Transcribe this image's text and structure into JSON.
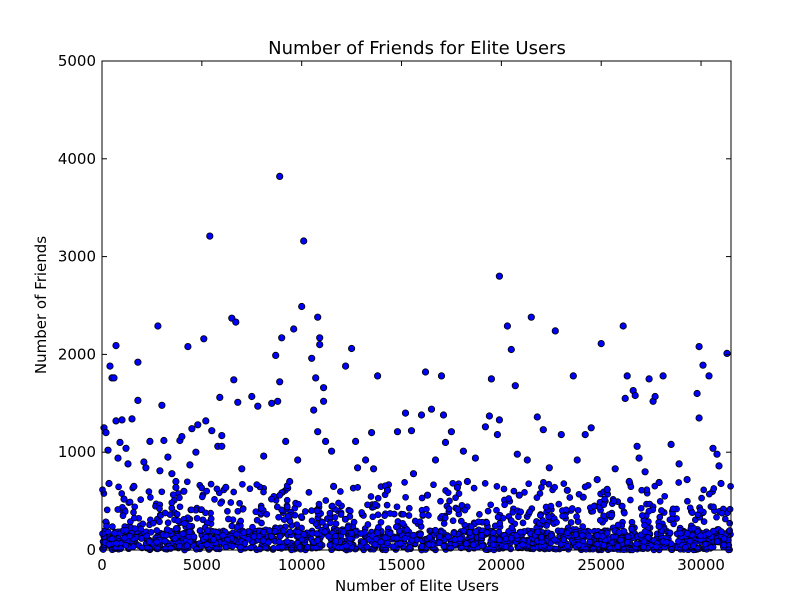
{
  "chart_data": {
    "type": "scatter",
    "title": "Number of Friends for Elite Users",
    "xlabel": "Number of Elite Users",
    "ylabel": "Number of Friends",
    "xlim": [
      0,
      31500
    ],
    "ylim": [
      0,
      5000
    ],
    "xticks": [
      "0",
      "5000",
      "10000",
      "15000",
      "20000",
      "25000",
      "30000"
    ],
    "yticks": [
      "0",
      "1000",
      "2000",
      "3000",
      "4000",
      "5000"
    ],
    "grid": false,
    "legend": "none",
    "marker_color": "#0000ff",
    "marker_edge": "#000000",
    "points": [
      [
        100,
        1250
      ],
      [
        200,
        1200
      ],
      [
        300,
        1020
      ],
      [
        350,
        680
      ],
      [
        400,
        1880
      ],
      [
        500,
        1760
      ],
      [
        600,
        1760
      ],
      [
        700,
        2090
      ],
      [
        700,
        1320
      ],
      [
        800,
        940
      ],
      [
        900,
        1100
      ],
      [
        1000,
        1330
      ],
      [
        1100,
        520
      ],
      [
        1200,
        1040
      ],
      [
        1300,
        880
      ],
      [
        1500,
        1340
      ],
      [
        1800,
        1920
      ],
      [
        1800,
        1530
      ],
      [
        2200,
        840
      ],
      [
        2400,
        1110
      ],
      [
        2800,
        2290
      ],
      [
        2900,
        810
      ],
      [
        3000,
        1480
      ],
      [
        3100,
        1120
      ],
      [
        3300,
        950
      ],
      [
        3500,
        780
      ],
      [
        3700,
        640
      ],
      [
        3900,
        1120
      ],
      [
        4000,
        1160
      ],
      [
        4300,
        2080
      ],
      [
        4400,
        870
      ],
      [
        4500,
        1240
      ],
      [
        4700,
        1000
      ],
      [
        4800,
        1280
      ],
      [
        5100,
        2160
      ],
      [
        5200,
        1320
      ],
      [
        5400,
        3210
      ],
      [
        5500,
        1220
      ],
      [
        5800,
        1060
      ],
      [
        5900,
        1560
      ],
      [
        6000,
        1170
      ],
      [
        6500,
        2370
      ],
      [
        6600,
        1740
      ],
      [
        6700,
        2330
      ],
      [
        6800,
        1510
      ],
      [
        7500,
        1570
      ],
      [
        7800,
        1470
      ],
      [
        8100,
        960
      ],
      [
        8500,
        1500
      ],
      [
        8700,
        1990
      ],
      [
        8800,
        1520
      ],
      [
        8900,
        3820
      ],
      [
        8900,
        1720
      ],
      [
        9000,
        2170
      ],
      [
        9200,
        1110
      ],
      [
        9600,
        2260
      ],
      [
        10000,
        2490
      ],
      [
        10100,
        3160
      ],
      [
        10500,
        1960
      ],
      [
        10600,
        1430
      ],
      [
        10800,
        2380
      ],
      [
        10900,
        2170
      ],
      [
        10900,
        2100
      ],
      [
        11100,
        1660
      ],
      [
        11100,
        1520
      ],
      [
        10700,
        1760
      ],
      [
        10800,
        1210
      ],
      [
        11200,
        1110
      ],
      [
        11500,
        1010
      ],
      [
        12200,
        1880
      ],
      [
        12500,
        2060
      ],
      [
        12700,
        1110
      ],
      [
        13500,
        1200
      ],
      [
        13800,
        1780
      ],
      [
        14800,
        1210
      ],
      [
        15200,
        1400
      ],
      [
        15500,
        1220
      ],
      [
        16000,
        1380
      ],
      [
        16200,
        1820
      ],
      [
        16500,
        1440
      ],
      [
        16700,
        920
      ],
      [
        17000,
        1780
      ],
      [
        17100,
        1380
      ],
      [
        17200,
        1100
      ],
      [
        17500,
        1210
      ],
      [
        18100,
        1010
      ],
      [
        19200,
        1260
      ],
      [
        19400,
        1370
      ],
      [
        19500,
        1750
      ],
      [
        19800,
        1180
      ],
      [
        19900,
        2800
      ],
      [
        19900,
        1330
      ],
      [
        20300,
        2290
      ],
      [
        20500,
        2050
      ],
      [
        20700,
        1680
      ],
      [
        20800,
        980
      ],
      [
        21500,
        2380
      ],
      [
        21800,
        1360
      ],
      [
        22100,
        1230
      ],
      [
        22700,
        2240
      ],
      [
        23000,
        1180
      ],
      [
        23600,
        1780
      ],
      [
        23800,
        920
      ],
      [
        24200,
        1180
      ],
      [
        24500,
        1250
      ],
      [
        25000,
        2110
      ],
      [
        25700,
        830
      ],
      [
        26100,
        2290
      ],
      [
        26300,
        1780
      ],
      [
        26200,
        1550
      ],
      [
        26600,
        1630
      ],
      [
        26700,
        1580
      ],
      [
        26800,
        1060
      ],
      [
        26900,
        940
      ],
      [
        27200,
        800
      ],
      [
        27400,
        1750
      ],
      [
        27600,
        1520
      ],
      [
        27700,
        1570
      ],
      [
        28100,
        1780
      ],
      [
        28500,
        1080
      ],
      [
        28900,
        880
      ],
      [
        29800,
        1600
      ],
      [
        29900,
        1350
      ],
      [
        29900,
        2080
      ],
      [
        30100,
        1890
      ],
      [
        30400,
        1780
      ],
      [
        30600,
        1040
      ],
      [
        30800,
        980
      ],
      [
        31300,
        2010
      ],
      [
        30900,
        860
      ],
      [
        21300,
        920
      ],
      [
        22400,
        840
      ],
      [
        18700,
        940
      ],
      [
        15600,
        780
      ],
      [
        13200,
        920
      ],
      [
        12800,
        840
      ],
      [
        9800,
        920
      ],
      [
        7000,
        830
      ],
      [
        3700,
        700
      ],
      [
        2100,
        900
      ],
      [
        26400,
        700
      ],
      [
        24800,
        720
      ],
      [
        27900,
        690
      ],
      [
        18300,
        700
      ],
      [
        11600,
        650
      ],
      [
        6200,
        640
      ],
      [
        4100,
        600
      ],
      [
        1600,
        650
      ],
      [
        29300,
        720
      ],
      [
        23300,
        610
      ],
      [
        17800,
        640
      ],
      [
        14300,
        610
      ],
      [
        31000,
        680
      ],
      [
        9400,
        700
      ],
      [
        24100,
        540
      ],
      [
        25300,
        620
      ],
      [
        16300,
        560
      ],
      [
        6000,
        1060
      ],
      [
        13600,
        830
      ],
      [
        20900,
        560
      ]
    ]
  }
}
